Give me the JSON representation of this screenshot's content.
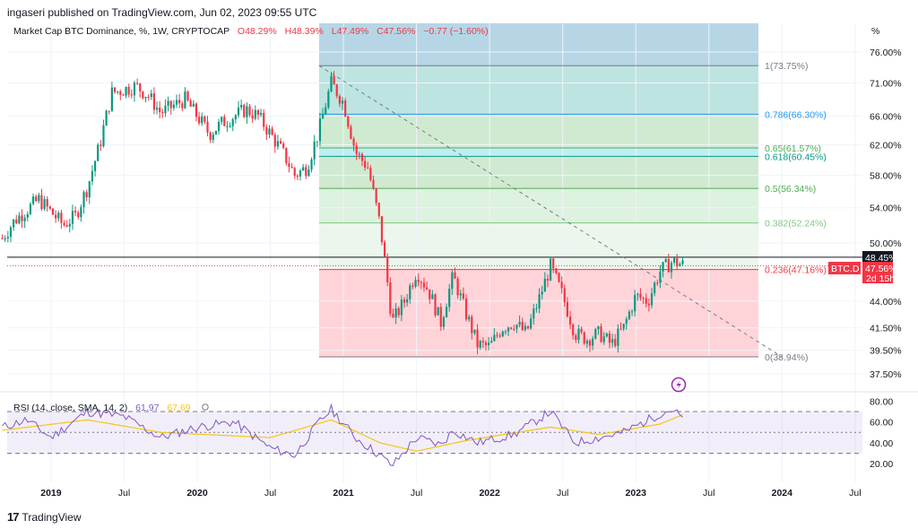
{
  "publisher": "ingaseri published on TradingView.com, Jun 02, 2023 09:55 UTC",
  "brand": {
    "mark": "17",
    "name": "TradingView"
  },
  "legend": {
    "symbol": "Market Cap BTC Dominance, %, 1W, CRYPTOCAP",
    "open": "O48.29%",
    "high": "H48.39%",
    "low": "L47.49%",
    "close": "C47.56%",
    "change": "−0.77 (−1.60%)"
  },
  "rsi_legend": {
    "title": "RSI (14, close, SMA, 14, 2)",
    "rsi": "61.97",
    "sma": "67.69"
  },
  "price_axis": {
    "unit": "%",
    "ticks": [
      "76.00%",
      "71.00%",
      "66.00%",
      "62.00%",
      "58.00%",
      "54.00%",
      "50.00%",
      "44.00%",
      "41.50%",
      "39.50%",
      "37.50%"
    ]
  },
  "rsi_axis": {
    "ticks": [
      "80.00",
      "60.00",
      "40.00",
      "20.00"
    ]
  },
  "time_axis": {
    "ticks": [
      "2019",
      "Jul",
      "2020",
      "Jul",
      "2021",
      "Jul",
      "2022",
      "Jul",
      "2023",
      "Jul",
      "2024",
      "Jul"
    ]
  },
  "price_badges": {
    "high_line": "48.45%",
    "symbol": "BTC.D",
    "last": "47.56%",
    "countdown": "2d 15h"
  },
  "colors": {
    "up": "#089981",
    "down": "#f23645",
    "rsi": "#7e57c2",
    "rsi_sma": "#f5c518",
    "fib_1": "#787b86",
    "fib_786": "#2196f3",
    "fib_65": "#4caf50",
    "fib_618": "#089981",
    "fib_5": "#4caf50",
    "fib_382": "#81c784",
    "fib_236": "#f23645",
    "fib_0": "#787b86"
  },
  "chart_data": {
    "type": "candlestick",
    "title": "Market Cap BTC Dominance, %, 1W, CRYPTOCAP",
    "ylim": [
      37.0,
      77.5
    ],
    "y_scale": "log",
    "fib_retracement": [
      {
        "ratio": "1",
        "label": "1(73.75%)",
        "price": 73.75
      },
      {
        "ratio": "0.786",
        "label": "0.786(66.30%)",
        "price": 66.3
      },
      {
        "ratio": "0.65",
        "label": "0.65(61.57%)",
        "price": 61.57
      },
      {
        "ratio": "0.618",
        "label": "0.618(60.45%)",
        "price": 60.45
      },
      {
        "ratio": "0.5",
        "label": "0.5(56.34%)",
        "price": 56.34
      },
      {
        "ratio": "0.382",
        "label": "0.382(52.24%)",
        "price": 52.24
      },
      {
        "ratio": "0.236",
        "label": "0.236(47.16%)",
        "price": 47.16
      },
      {
        "ratio": "0",
        "label": "0(38.94%)",
        "price": 38.94
      }
    ],
    "trend_line": {
      "from": {
        "date": "2020-11",
        "price": 73.75
      },
      "to": {
        "date": "2024-01",
        "price": 38.94
      }
    },
    "horizontal_line": 48.45,
    "last_price": 47.56,
    "price_keypoints": [
      {
        "date": "2018-09",
        "price": 50.5
      },
      {
        "date": "2018-10",
        "price": 52.5
      },
      {
        "date": "2018-12",
        "price": 55.0
      },
      {
        "date": "2019-02",
        "price": 52.0
      },
      {
        "date": "2019-03",
        "price": 53.0
      },
      {
        "date": "2019-04",
        "price": 56.5
      },
      {
        "date": "2019-05",
        "price": 62.0
      },
      {
        "date": "2019-06",
        "price": 69.5
      },
      {
        "date": "2019-08",
        "price": 70.5
      },
      {
        "date": "2019-09",
        "price": 69.0
      },
      {
        "date": "2019-10",
        "price": 66.5
      },
      {
        "date": "2019-12",
        "price": 68.5
      },
      {
        "date": "2020-02",
        "price": 63.5
      },
      {
        "date": "2020-03",
        "price": 65.0
      },
      {
        "date": "2020-05",
        "price": 67.0
      },
      {
        "date": "2020-06",
        "price": 66.0
      },
      {
        "date": "2020-08",
        "price": 61.0
      },
      {
        "date": "2020-09",
        "price": 58.0
      },
      {
        "date": "2020-10",
        "price": 59.0
      },
      {
        "date": "2020-11",
        "price": 64.0
      },
      {
        "date": "2020-12",
        "price": 71.0
      },
      {
        "date": "2021-01",
        "price": 68.0
      },
      {
        "date": "2021-02",
        "price": 61.0
      },
      {
        "date": "2021-03",
        "price": 59.0
      },
      {
        "date": "2021-04",
        "price": 52.0
      },
      {
        "date": "2021-05",
        "price": 42.0
      },
      {
        "date": "2021-06",
        "price": 44.0
      },
      {
        "date": "2021-07",
        "price": 47.0
      },
      {
        "date": "2021-08",
        "price": 45.0
      },
      {
        "date": "2021-09",
        "price": 42.0
      },
      {
        "date": "2021-10",
        "price": 46.5
      },
      {
        "date": "2021-11",
        "price": 43.0
      },
      {
        "date": "2021-12",
        "price": 40.0
      },
      {
        "date": "2022-01",
        "price": 39.8
      },
      {
        "date": "2022-02",
        "price": 41.5
      },
      {
        "date": "2022-03",
        "price": 42.0
      },
      {
        "date": "2022-04",
        "price": 41.0
      },
      {
        "date": "2022-05",
        "price": 44.0
      },
      {
        "date": "2022-06",
        "price": 47.5
      },
      {
        "date": "2022-07",
        "price": 44.5
      },
      {
        "date": "2022-08",
        "price": 41.0
      },
      {
        "date": "2022-09",
        "price": 40.5
      },
      {
        "date": "2022-10",
        "price": 41.0
      },
      {
        "date": "2022-11",
        "price": 40.0
      },
      {
        "date": "2022-12",
        "price": 41.5
      },
      {
        "date": "2023-01",
        "price": 44.5
      },
      {
        "date": "2023-02",
        "price": 44.0
      },
      {
        "date": "2023-03",
        "price": 47.0
      },
      {
        "date": "2023-04",
        "price": 48.0
      },
      {
        "date": "2023-05",
        "price": 47.6
      }
    ],
    "rsi": {
      "title": "RSI (14, close, SMA, 14, 2)",
      "rsi_last": 61.97,
      "sma_last": 67.69,
      "bands": [
        70,
        50,
        30
      ],
      "ylim": [
        15,
        82
      ],
      "rsi_keypoints": [
        {
          "date": "2018-09",
          "value": 55
        },
        {
          "date": "2018-11",
          "value": 62
        },
        {
          "date": "2019-01",
          "value": 45
        },
        {
          "date": "2019-04",
          "value": 70
        },
        {
          "date": "2019-07",
          "value": 65
        },
        {
          "date": "2019-10",
          "value": 45
        },
        {
          "date": "2020-01",
          "value": 55
        },
        {
          "date": "2020-04",
          "value": 60
        },
        {
          "date": "2020-07",
          "value": 35
        },
        {
          "date": "2020-09",
          "value": 28
        },
        {
          "date": "2020-11",
          "value": 60
        },
        {
          "date": "2020-12",
          "value": 72
        },
        {
          "date": "2021-02",
          "value": 45
        },
        {
          "date": "2021-04",
          "value": 28
        },
        {
          "date": "2021-05",
          "value": 18
        },
        {
          "date": "2021-07",
          "value": 45
        },
        {
          "date": "2021-09",
          "value": 38
        },
        {
          "date": "2021-10",
          "value": 52
        },
        {
          "date": "2021-12",
          "value": 40
        },
        {
          "date": "2022-03",
          "value": 48
        },
        {
          "date": "2022-06",
          "value": 70
        },
        {
          "date": "2022-08",
          "value": 40
        },
        {
          "date": "2022-10",
          "value": 45
        },
        {
          "date": "2022-12",
          "value": 50
        },
        {
          "date": "2023-03",
          "value": 68
        },
        {
          "date": "2023-04",
          "value": 72
        },
        {
          "date": "2023-05",
          "value": 62
        }
      ],
      "sma_keypoints": [
        {
          "date": "2018-09",
          "value": 52
        },
        {
          "date": "2019-04",
          "value": 62
        },
        {
          "date": "2019-10",
          "value": 50
        },
        {
          "date": "2020-07",
          "value": 45
        },
        {
          "date": "2020-12",
          "value": 62
        },
        {
          "date": "2021-04",
          "value": 40
        },
        {
          "date": "2021-07",
          "value": 32
        },
        {
          "date": "2021-11",
          "value": 42
        },
        {
          "date": "2022-06",
          "value": 55
        },
        {
          "date": "2022-10",
          "value": 48
        },
        {
          "date": "2023-03",
          "value": 58
        },
        {
          "date": "2023-05",
          "value": 67.69
        }
      ]
    }
  }
}
